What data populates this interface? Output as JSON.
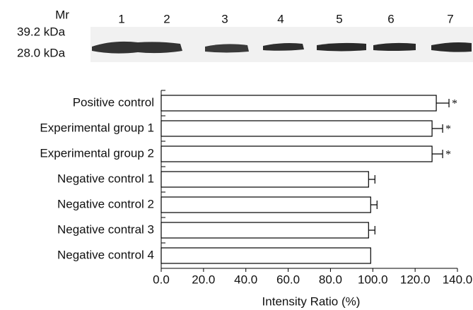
{
  "blot": {
    "marker_label": "Mr",
    "markers": [
      "39.2 kDa",
      "28.0 kDa"
    ],
    "lanes": [
      "1",
      "2",
      "3",
      "4",
      "5",
      "6",
      "7"
    ]
  },
  "chart_data": {
    "type": "hbar",
    "x_label": "Intensity Ratio (%)",
    "categories": [
      "Positive control",
      "Experimental group 1",
      "Experimental group 2",
      "Negative control 1",
      "Negative control 2",
      "Negative contral 3",
      "Negative control 4"
    ],
    "values": [
      130,
      128,
      128,
      98,
      99,
      98,
      99
    ],
    "errors": [
      6,
      5,
      5,
      3,
      3,
      3,
      null
    ],
    "annotations": [
      "*",
      "*",
      "*",
      null,
      null,
      null,
      null
    ],
    "color": "#ffffff",
    "xlim": [
      0,
      140
    ],
    "xticks": [
      {
        "value": 0,
        "label": "0.0"
      },
      {
        "value": 20,
        "label": "20.0"
      },
      {
        "value": 40,
        "label": "40.0"
      },
      {
        "value": 60,
        "label": "60.0"
      },
      {
        "value": 80,
        "label": "80.0"
      },
      {
        "value": 100,
        "label": "100.0"
      },
      {
        "value": 120,
        "label": "120.0"
      },
      {
        "value": 140,
        "label": "140.0"
      }
    ],
    "grid": false
  }
}
